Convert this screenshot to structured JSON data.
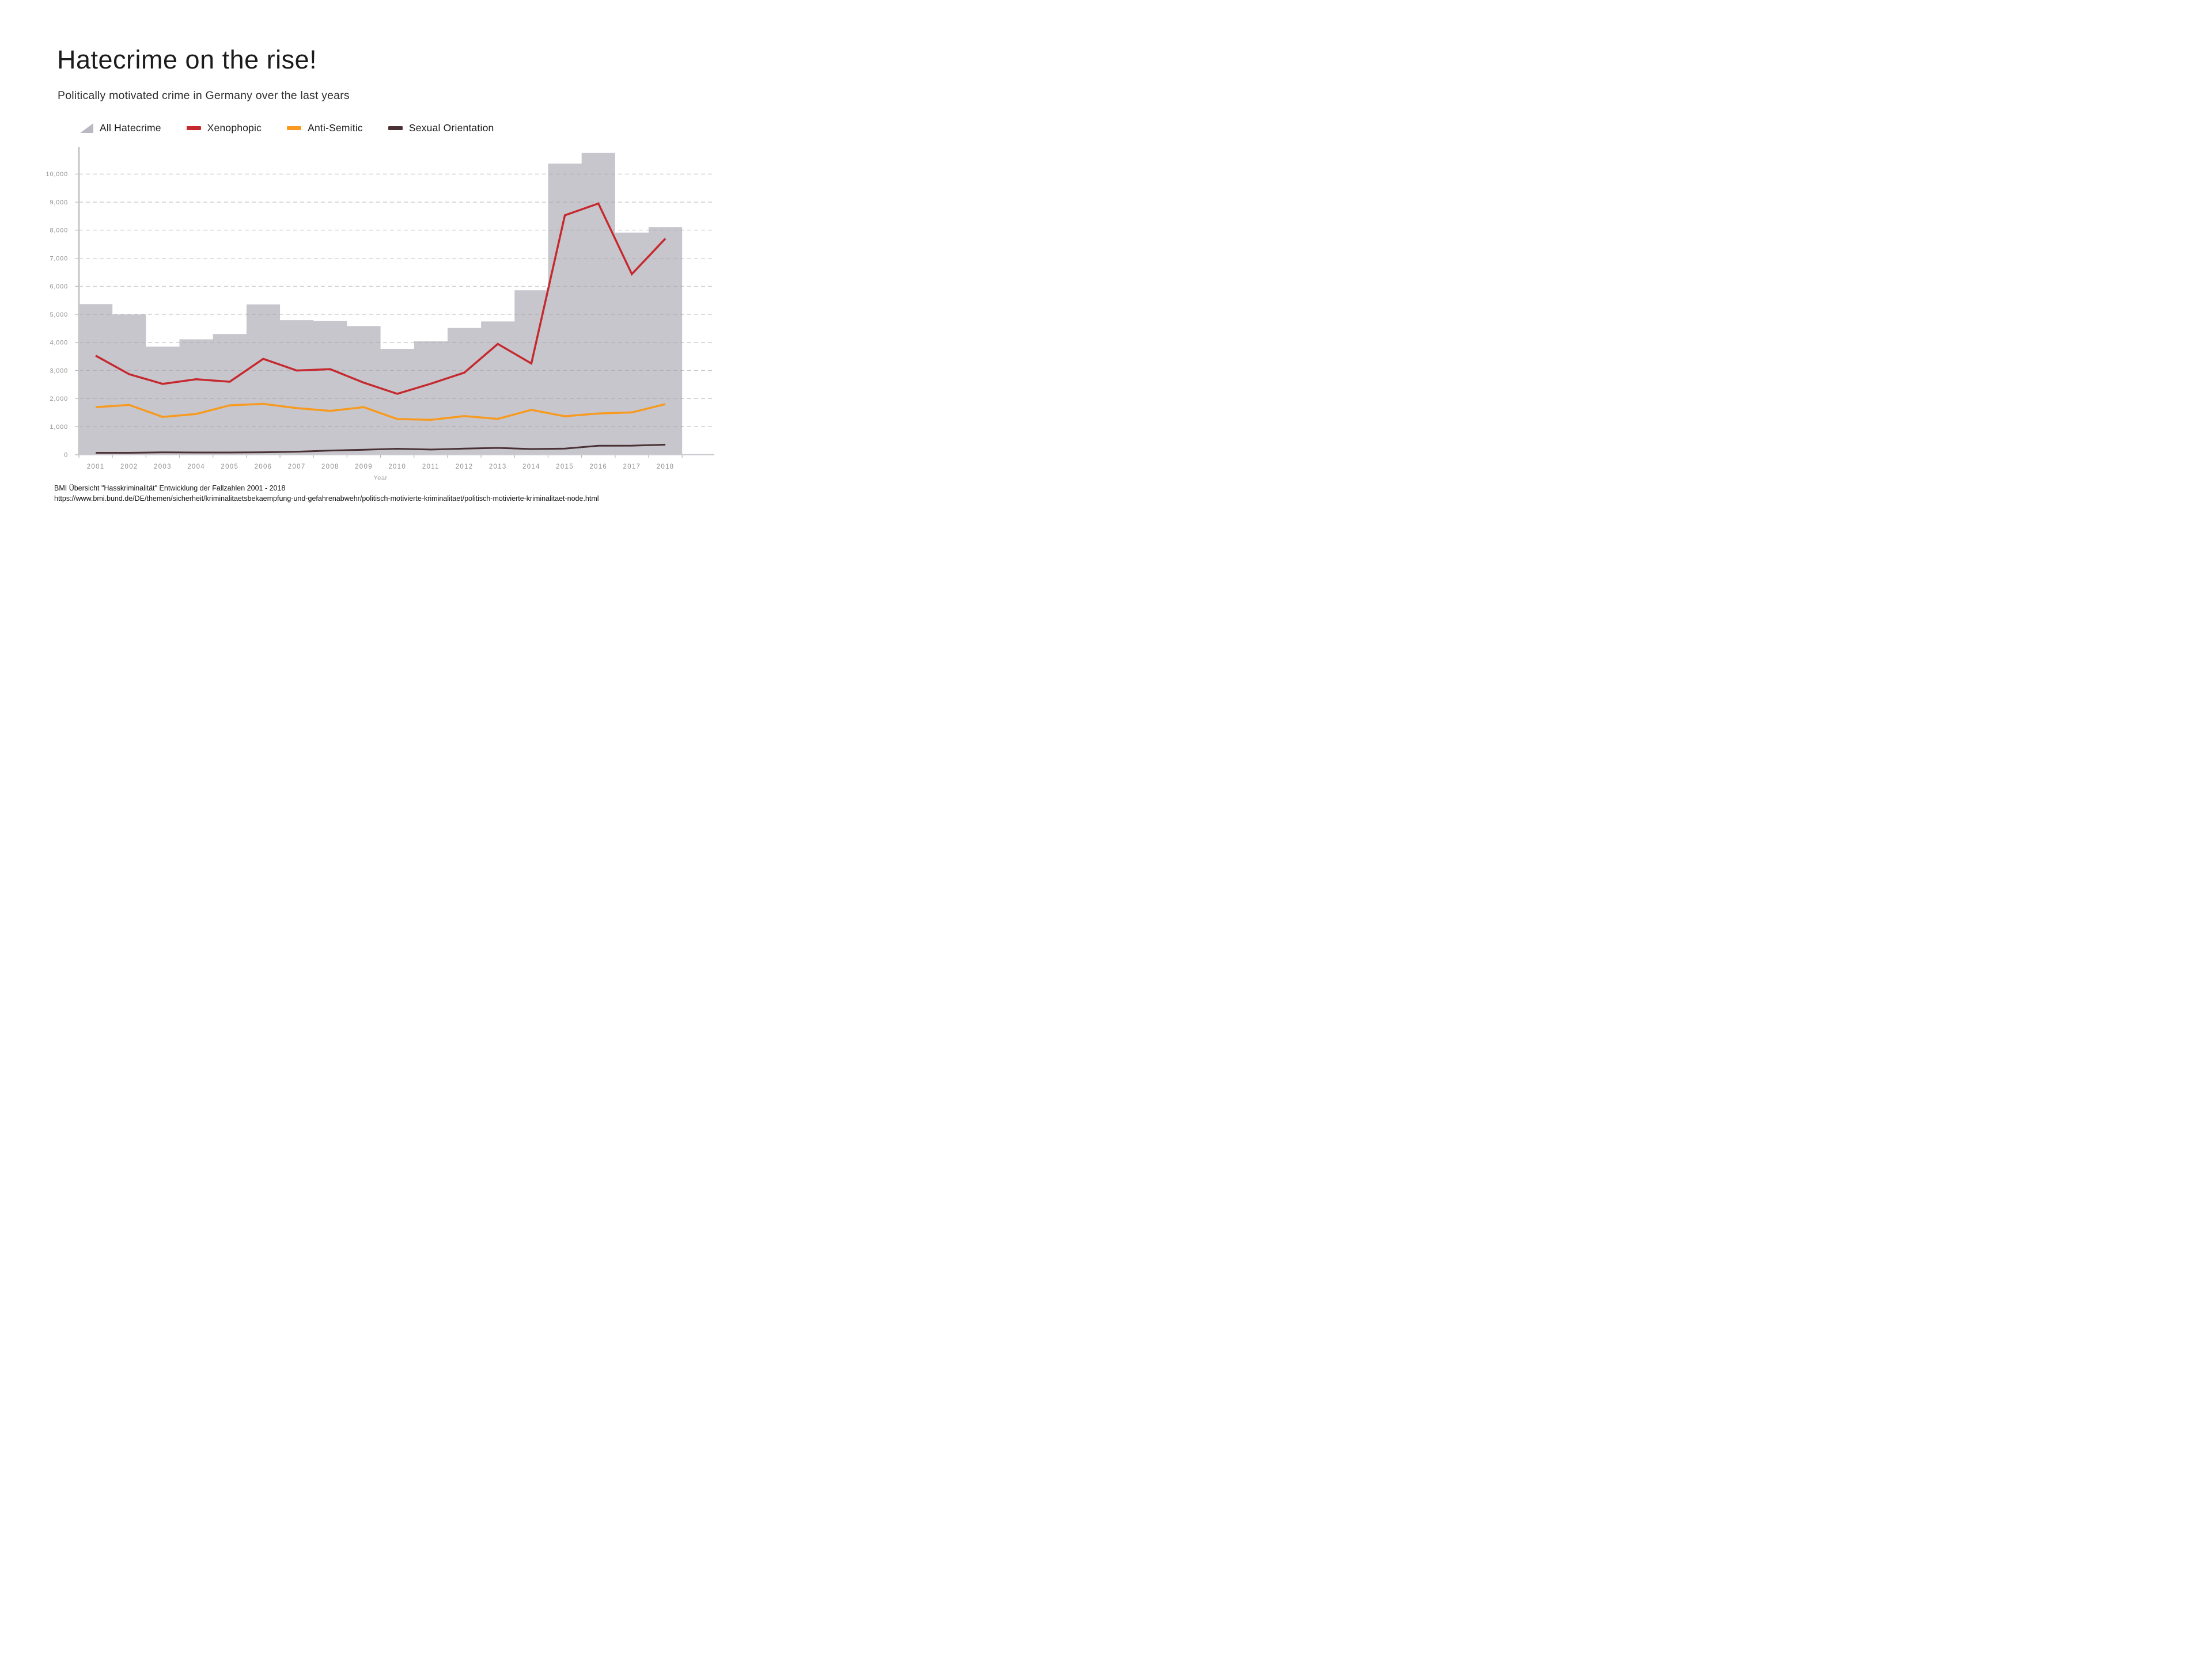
{
  "title": "Hatecrime on the rise!",
  "subtitle": "Politically motivated crime in Germany over the last years",
  "legend": [
    {
      "label": "All Hatecrime",
      "icon": "gray-triangle-area-icon",
      "color": "#bab9c1"
    },
    {
      "label": "Xenophopic",
      "icon": "red-line-swatch",
      "color": "#c5292e"
    },
    {
      "label": "Anti-Semitic",
      "icon": "orange-line-swatch",
      "color": "#f79a1f"
    },
    {
      "label": "Sexual Orientation",
      "icon": "dark-line-swatch",
      "color": "#4a3135"
    }
  ],
  "chart_data": {
    "type": "area",
    "subtype": "step-area with overlaid lines",
    "title": "Politically motivated crime in Germany 2001-2018",
    "xlabel": "Year",
    "ylabel": "",
    "ylim": [
      0,
      11050
    ],
    "grid": "horizontal dashed",
    "legend_position": "top-left above plot",
    "y_ticks": [
      0,
      1000,
      2000,
      3000,
      4000,
      5000,
      6000,
      7000,
      8000,
      9000,
      10000
    ],
    "categories": [
      "2001",
      "2002",
      "2003",
      "2004",
      "2005",
      "2006",
      "2007",
      "2008",
      "2009",
      "2010",
      "2011",
      "2012",
      "2013",
      "2014",
      "2015",
      "2016",
      "2017",
      "2018"
    ],
    "series": [
      {
        "name": "All Hatecrime",
        "type": "step-area",
        "color": "#c7c6cd",
        "values": [
          5363,
          4996,
          3849,
          4110,
          4297,
          5354,
          4793,
          4759,
          4583,
          3770,
          4040,
          4514,
          4747,
          5858,
          10373,
          10751,
          7913,
          8113
        ]
      },
      {
        "name": "Xenophopic",
        "type": "line",
        "color": "#c5292e",
        "values": [
          3528,
          2867,
          2521,
          2686,
          2598,
          3414,
          2997,
          3046,
          2564,
          2166,
          2528,
          2922,
          3945,
          3248,
          8529,
          8950,
          6434,
          7701
        ]
      },
      {
        "name": "Anti-Semitic",
        "type": "line",
        "color": "#f79a1f",
        "values": [
          1691,
          1771,
          1344,
          1449,
          1757,
          1809,
          1657,
          1559,
          1690,
          1268,
          1239,
          1374,
          1275,
          1596,
          1366,
          1468,
          1504,
          1799
        ]
      },
      {
        "name": "Sexual Orientation",
        "type": "line",
        "color": "#4a3135",
        "values": [
          65,
          65,
          80,
          75,
          75,
          85,
          105,
          145,
          175,
          210,
          180,
          215,
          240,
          200,
          215,
          315,
          320,
          355
        ]
      }
    ]
  },
  "source": {
    "line1": "BMI Übersicht \"Hasskriminalität\" Entwicklung der Fallzahlen 2001 - 2018",
    "line2": "https://www.bmi.bund.de/DE/themen/sicherheit/kriminalitaetsbekaempfung-und-gefahrenabwehr/politisch-motivierte-kriminalitaet/politisch-motivierte-kriminalitaet-node.html"
  }
}
